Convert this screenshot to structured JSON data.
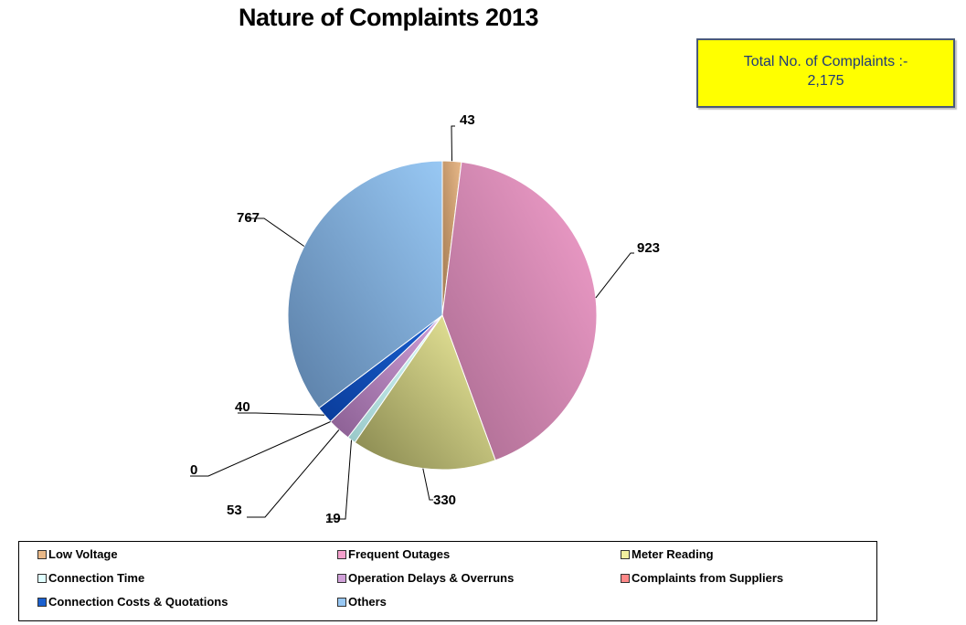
{
  "chart_data": {
    "type": "pie",
    "title": "Nature of Complaints 2013",
    "total_note": {
      "line1": "Total No. of Complaints :-",
      "line2": "2,175"
    },
    "slices": [
      {
        "label": "Low Voltage",
        "value": 43,
        "data_label": "43",
        "color": "#e8b888",
        "dark": "#a07850"
      },
      {
        "label": "Frequent Outages",
        "value": 923,
        "data_label": "923",
        "color": "#f4a0cc",
        "dark": "#a86a90"
      },
      {
        "label": "Meter Reading",
        "value": 330,
        "data_label": "330",
        "color": "#f2f0a0",
        "dark": "#86864e"
      },
      {
        "label": "Connection Time",
        "value": 19,
        "data_label": "19",
        "color": "#e0ffff",
        "dark": "#98c8c8"
      },
      {
        "label": "Operation Delays & Overruns",
        "value": 53,
        "data_label": "53",
        "color": "#d0a0d8",
        "dark": "#8a5e92"
      },
      {
        "label": "Complaints from Suppliers",
        "value": 0,
        "data_label": "0",
        "color": "#ff8888",
        "dark": "#c04848"
      },
      {
        "label": "Connection Costs & Quotations",
        "value": 40,
        "data_label": "40",
        "color": "#1a60d0",
        "dark": "#0a3c9a"
      },
      {
        "label": "Others",
        "value": 767,
        "data_label": "767",
        "color": "#98c8f4",
        "dark": "#5a7ea6"
      }
    ],
    "legend_position": "bottom"
  }
}
